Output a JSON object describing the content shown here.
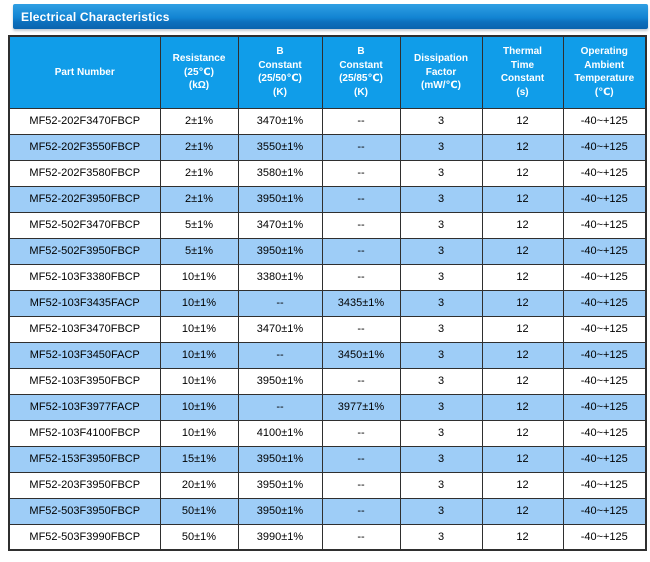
{
  "section": {
    "title": "Electrical Characteristics"
  },
  "colors": {
    "titlebar_blue_top": "#2f9fe3",
    "titlebar_blue_bottom": "#0a63ae",
    "header_blue": "#109de9",
    "alt_row_blue": "#9ecdf7",
    "border": "#2f2f2f",
    "header_text": "#ffffff",
    "body_text": "#000000"
  },
  "table": {
    "columns": [
      "Part Number",
      "Resistance\n(25℃)\n(kΩ)",
      "B\nConstant\n(25/50℃)\n(K)",
      "B\nConstant\n(25/85℃)\n(K)",
      "Dissipation\nFactor\n(mW/℃)",
      "Thermal\nTime\nConstant\n(s)",
      "Operating\nAmbient\nTemperature\n(℃)"
    ],
    "rows": [
      {
        "cells": [
          "MF52-202F3470FBCP",
          "2±1%",
          "3470±1%",
          "--",
          "3",
          "12",
          "-40~+125"
        ]
      },
      {
        "cells": [
          "MF52-202F3550FBCP",
          "2±1%",
          "3550±1%",
          "--",
          "3",
          "12",
          "-40~+125"
        ]
      },
      {
        "cells": [
          "MF52-202F3580FBCP",
          "2±1%",
          "3580±1%",
          "--",
          "3",
          "12",
          "-40~+125"
        ]
      },
      {
        "cells": [
          "MF52-202F3950FBCP",
          "2±1%",
          "3950±1%",
          "--",
          "3",
          "12",
          "-40~+125"
        ]
      },
      {
        "cells": [
          "MF52-502F3470FBCP",
          "5±1%",
          "3470±1%",
          "--",
          "3",
          "12",
          "-40~+125"
        ]
      },
      {
        "cells": [
          "MF52-502F3950FBCP",
          "5±1%",
          "3950±1%",
          "--",
          "3",
          "12",
          "-40~+125"
        ]
      },
      {
        "cells": [
          "MF52-103F3380FBCP",
          "10±1%",
          "3380±1%",
          "--",
          "3",
          "12",
          "-40~+125"
        ]
      },
      {
        "cells": [
          "MF52-103F3435FACP",
          "10±1%",
          "--",
          "3435±1%",
          "3",
          "12",
          "-40~+125"
        ]
      },
      {
        "cells": [
          "MF52-103F3470FBCP",
          "10±1%",
          "3470±1%",
          "--",
          "3",
          "12",
          "-40~+125"
        ]
      },
      {
        "cells": [
          "MF52-103F3450FACP",
          "10±1%",
          "--",
          "3450±1%",
          "3",
          "12",
          "-40~+125"
        ]
      },
      {
        "cells": [
          "MF52-103F3950FBCP",
          "10±1%",
          "3950±1%",
          "--",
          "3",
          "12",
          "-40~+125"
        ]
      },
      {
        "cells": [
          "MF52-103F3977FACP",
          "10±1%",
          "--",
          "3977±1%",
          "3",
          "12",
          "-40~+125"
        ]
      },
      {
        "cells": [
          "MF52-103F4100FBCP",
          "10±1%",
          "4100±1%",
          "--",
          "3",
          "12",
          "-40~+125"
        ]
      },
      {
        "cells": [
          "MF52-153F3950FBCP",
          "15±1%",
          "3950±1%",
          "--",
          "3",
          "12",
          "-40~+125"
        ]
      },
      {
        "cells": [
          "MF52-203F3950FBCP",
          "20±1%",
          "3950±1%",
          "--",
          "3",
          "12",
          "-40~+125"
        ]
      },
      {
        "cells": [
          "MF52-503F3950FBCP",
          "50±1%",
          "3950±1%",
          "--",
          "3",
          "12",
          "-40~+125"
        ]
      },
      {
        "cells": [
          "MF52-503F3990FBCP",
          "50±1%",
          "3990±1%",
          "--",
          "3",
          "12",
          "-40~+125"
        ]
      }
    ]
  }
}
